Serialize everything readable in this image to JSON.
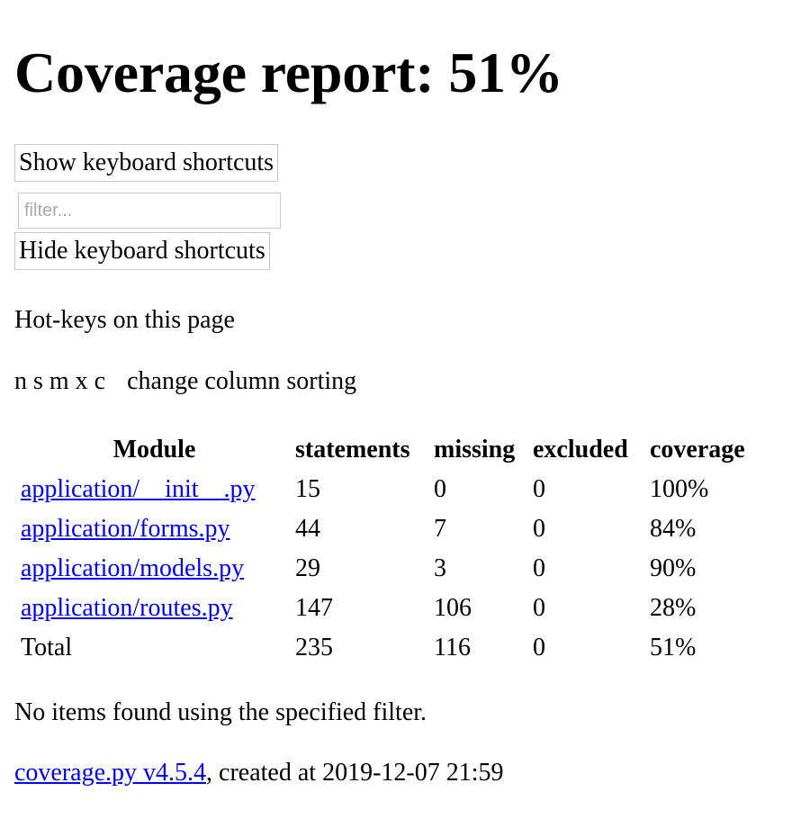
{
  "header": {
    "title": "Coverage report: 51%"
  },
  "controls": {
    "show_shortcuts_label": "Show keyboard shortcuts",
    "hide_shortcuts_label": "Hide keyboard shortcuts",
    "filter": {
      "placeholder": "filter...",
      "value": ""
    }
  },
  "hotkeys": {
    "title": "Hot-keys on this page",
    "keys": "n s m x c",
    "description": "change column sorting"
  },
  "table": {
    "headers": {
      "module": "Module",
      "statements": "statements",
      "missing": "missing",
      "excluded": "excluded",
      "coverage": "coverage"
    },
    "rows": [
      {
        "module": "application/__init__.py",
        "statements": "15",
        "missing": "0",
        "excluded": "0",
        "coverage": "100%"
      },
      {
        "module": "application/forms.py",
        "statements": "44",
        "missing": "7",
        "excluded": "0",
        "coverage": "84%"
      },
      {
        "module": "application/models.py",
        "statements": "29",
        "missing": "3",
        "excluded": "0",
        "coverage": "90%"
      },
      {
        "module": "application/routes.py",
        "statements": "147",
        "missing": "106",
        "excluded": "0",
        "coverage": "28%"
      }
    ],
    "total": {
      "module": "Total",
      "statements": "235",
      "missing": "116",
      "excluded": "0",
      "coverage": "51%"
    }
  },
  "no_items_message": "No items found using the specified filter.",
  "footer": {
    "link_text": "coverage.py v4.5.4",
    "created_text": ", created at 2019-12-07 21:59"
  }
}
